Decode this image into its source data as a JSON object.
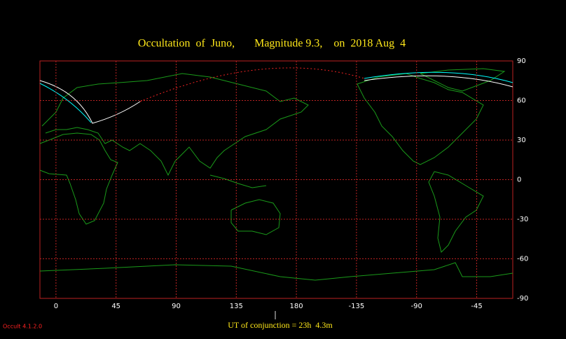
{
  "header": {
    "title": "Occultation  of  Juno,       Magnitude 9.3,    on  2018 Aug  4"
  },
  "map": {
    "lon_range": [
      -12,
      342
    ],
    "lat_range": [
      90,
      -90
    ],
    "lon_ticks": [
      0,
      45,
      90,
      135,
      180,
      -135,
      -90,
      -45
    ],
    "lat_ticks": [
      90,
      60,
      30,
      0,
      -30,
      -60,
      -90
    ]
  },
  "footer": {
    "conjunction": "UT of conjunction = 23h  4.3m",
    "version": "Occult 4.1.2.0"
  }
}
